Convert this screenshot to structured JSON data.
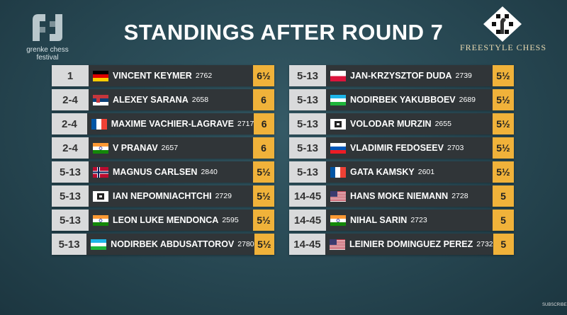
{
  "header": {
    "title": "STANDINGS AFTER ROUND 7",
    "left_logo": [
      "grenke chess",
      "festival"
    ],
    "right_logo": "FREESTYLE CHESS"
  },
  "table": {
    "columns": [
      [
        {
          "rank": "1",
          "name": "VINCENT KEYMER",
          "rating": 2762,
          "score": "6½"
        },
        {
          "rank": "2-4",
          "name": "ALEXEY SARANA",
          "rating": 2658,
          "score": "6"
        },
        {
          "rank": "2-4",
          "name": "MAXIME VACHIER-LAGRAVE",
          "rating": 2717,
          "score": "6"
        },
        {
          "rank": "2-4",
          "name": "V PRANAV",
          "rating": 2657,
          "score": "6"
        },
        {
          "rank": "5-13",
          "name": "MAGNUS CARLSEN",
          "rating": 2840,
          "score": "5½"
        },
        {
          "rank": "5-13",
          "name": "IAN NEPOMNIACHTCHI",
          "rating": 2729,
          "score": "5½"
        },
        {
          "rank": "5-13",
          "name": "LEON LUKE MENDONCA",
          "rating": 2595,
          "score": "5½"
        },
        {
          "rank": "5-13",
          "name": "NODIRBEK ABDUSATTOROV",
          "rating": 2780,
          "score": "5½"
        }
      ],
      [
        {
          "rank": "5-13",
          "name": "JAN-KRZYSZTOF DUDA",
          "rating": 2739,
          "score": "5½"
        },
        {
          "rank": "5-13",
          "name": "NODIRBEK YAKUBBOEV",
          "rating": 2689,
          "score": "5½"
        },
        {
          "rank": "5-13",
          "name": "VOLODAR MURZIN",
          "rating": 2655,
          "score": "5½"
        },
        {
          "rank": "5-13",
          "name": "VLADIMIR FEDOSEEV",
          "rating": 2703,
          "score": "5½"
        },
        {
          "rank": "5-13",
          "name": "GATA KAMSKY",
          "rating": 2601,
          "score": "5½"
        },
        {
          "rank": "14-45",
          "name": "HANS MOKE NIEMANN",
          "rating": 2728,
          "score": "5"
        },
        {
          "rank": "14-45",
          "name": "NIHAL SARIN",
          "rating": 2723,
          "score": "5"
        },
        {
          "rank": "14-45",
          "name": "LEINIER DOMINGUEZ PEREZ",
          "rating": 2732,
          "score": "5"
        }
      ]
    ]
  },
  "footer": {
    "subscribe": "SUBSCRIBE"
  }
}
